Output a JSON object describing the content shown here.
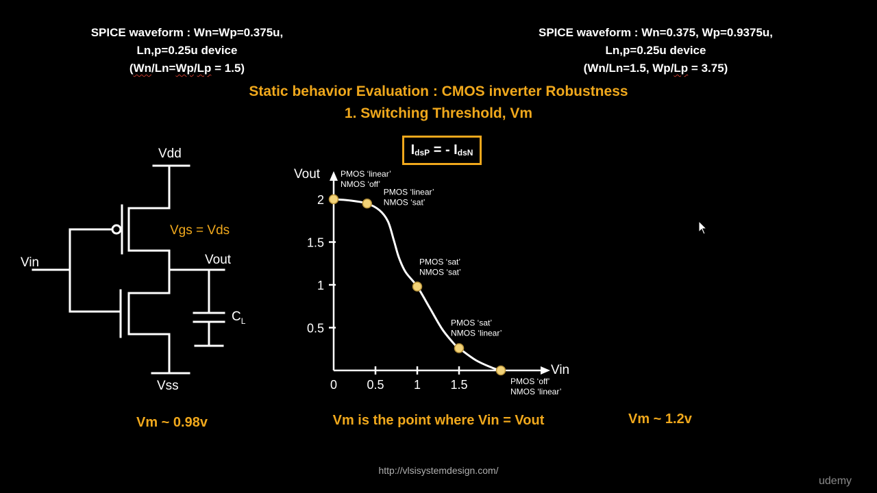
{
  "left_header": {
    "line1": "SPICE waveform : Wn=Wp=0.375u,",
    "line2": "Ln,p=0.25u device",
    "line3_pre": "(",
    "line3_a": "Wn",
    "line3_mid": "/Ln=",
    "line3_b": "Wp",
    "line3_mid2": "/",
    "line3_c": "Lp",
    "line3_post": " = 1.5)"
  },
  "right_header": {
    "line1": "SPICE waveform : Wn=0.375, Wp=0.9375u,",
    "line2": "Ln,p=0.25u device",
    "line3_pre": "(Wn/Ln=1.5, Wp/",
    "line3_u": "Lp",
    "line3_post": " = 3.75)"
  },
  "title": {
    "line1": "Static behavior Evaluation : CMOS inverter Robustness",
    "line2": "1. Switching Threshold, Vm"
  },
  "equation": {
    "i1": "I",
    "sub1": "dsP",
    "mid": " = - I",
    "sub2": "dsN"
  },
  "circuit": {
    "vdd": "Vdd",
    "vss": "Vss",
    "vin": "Vin",
    "vout": "Vout",
    "cap": "C",
    "cap_sub": "L",
    "annotation": "Vgs = Vds"
  },
  "chart_data": {
    "type": "line",
    "xlabel": "Vin",
    "ylabel": "Vout",
    "x_ticks": [
      "0",
      "0.5",
      "1",
      "1.5"
    ],
    "y_ticks": [
      "0.5",
      "1",
      "1.5",
      "2"
    ],
    "xlim": [
      0,
      2
    ],
    "ylim": [
      0,
      2
    ],
    "curve": [
      {
        "x": 0,
        "y": 2.0
      },
      {
        "x": 0.2,
        "y": 1.985
      },
      {
        "x": 0.4,
        "y": 1.95
      },
      {
        "x": 0.55,
        "y": 1.87
      },
      {
        "x": 0.65,
        "y": 1.74
      },
      {
        "x": 0.72,
        "y": 1.52
      },
      {
        "x": 0.78,
        "y": 1.32
      },
      {
        "x": 0.86,
        "y": 1.15
      },
      {
        "x": 1.0,
        "y": 0.98
      },
      {
        "x": 1.15,
        "y": 0.73
      },
      {
        "x": 1.3,
        "y": 0.48
      },
      {
        "x": 1.45,
        "y": 0.3
      },
      {
        "x": 1.5,
        "y": 0.26
      },
      {
        "x": 1.7,
        "y": 0.12
      },
      {
        "x": 1.9,
        "y": 0.03
      },
      {
        "x": 2.0,
        "y": 0.0
      }
    ],
    "points": [
      {
        "x": 0,
        "y": 2.0,
        "label1": "PMOS ‘linear’",
        "label2": "NMOS ‘off’"
      },
      {
        "x": 0.4,
        "y": 1.95,
        "label1": "PMOS ‘linear’",
        "label2": "NMOS ‘sat’"
      },
      {
        "x": 1.0,
        "y": 0.98,
        "label1": "PMOS ‘sat’",
        "label2": "NMOS ‘sat’"
      },
      {
        "x": 1.5,
        "y": 0.26,
        "label1": "PMOS ‘sat’",
        "label2": "NMOS ‘linear’"
      },
      {
        "x": 2.0,
        "y": 0.0,
        "label1": "PMOS ‘off’",
        "label2": "NMOS ‘linear’"
      }
    ],
    "colors": {
      "curve": "#ffffff",
      "point": "#f2d277",
      "point_stroke": "#b8923a"
    }
  },
  "vm_left": "Vm ~ 0.98v",
  "vm_center": "Vm is the point where Vin = Vout",
  "vm_right": "Vm ~ 1.2v",
  "url": "http://vlsisystemdesign.com/",
  "brand": "udemy",
  "colors": {
    "accent": "#f0a81c",
    "background": "#000000",
    "text": "#ffffff"
  }
}
